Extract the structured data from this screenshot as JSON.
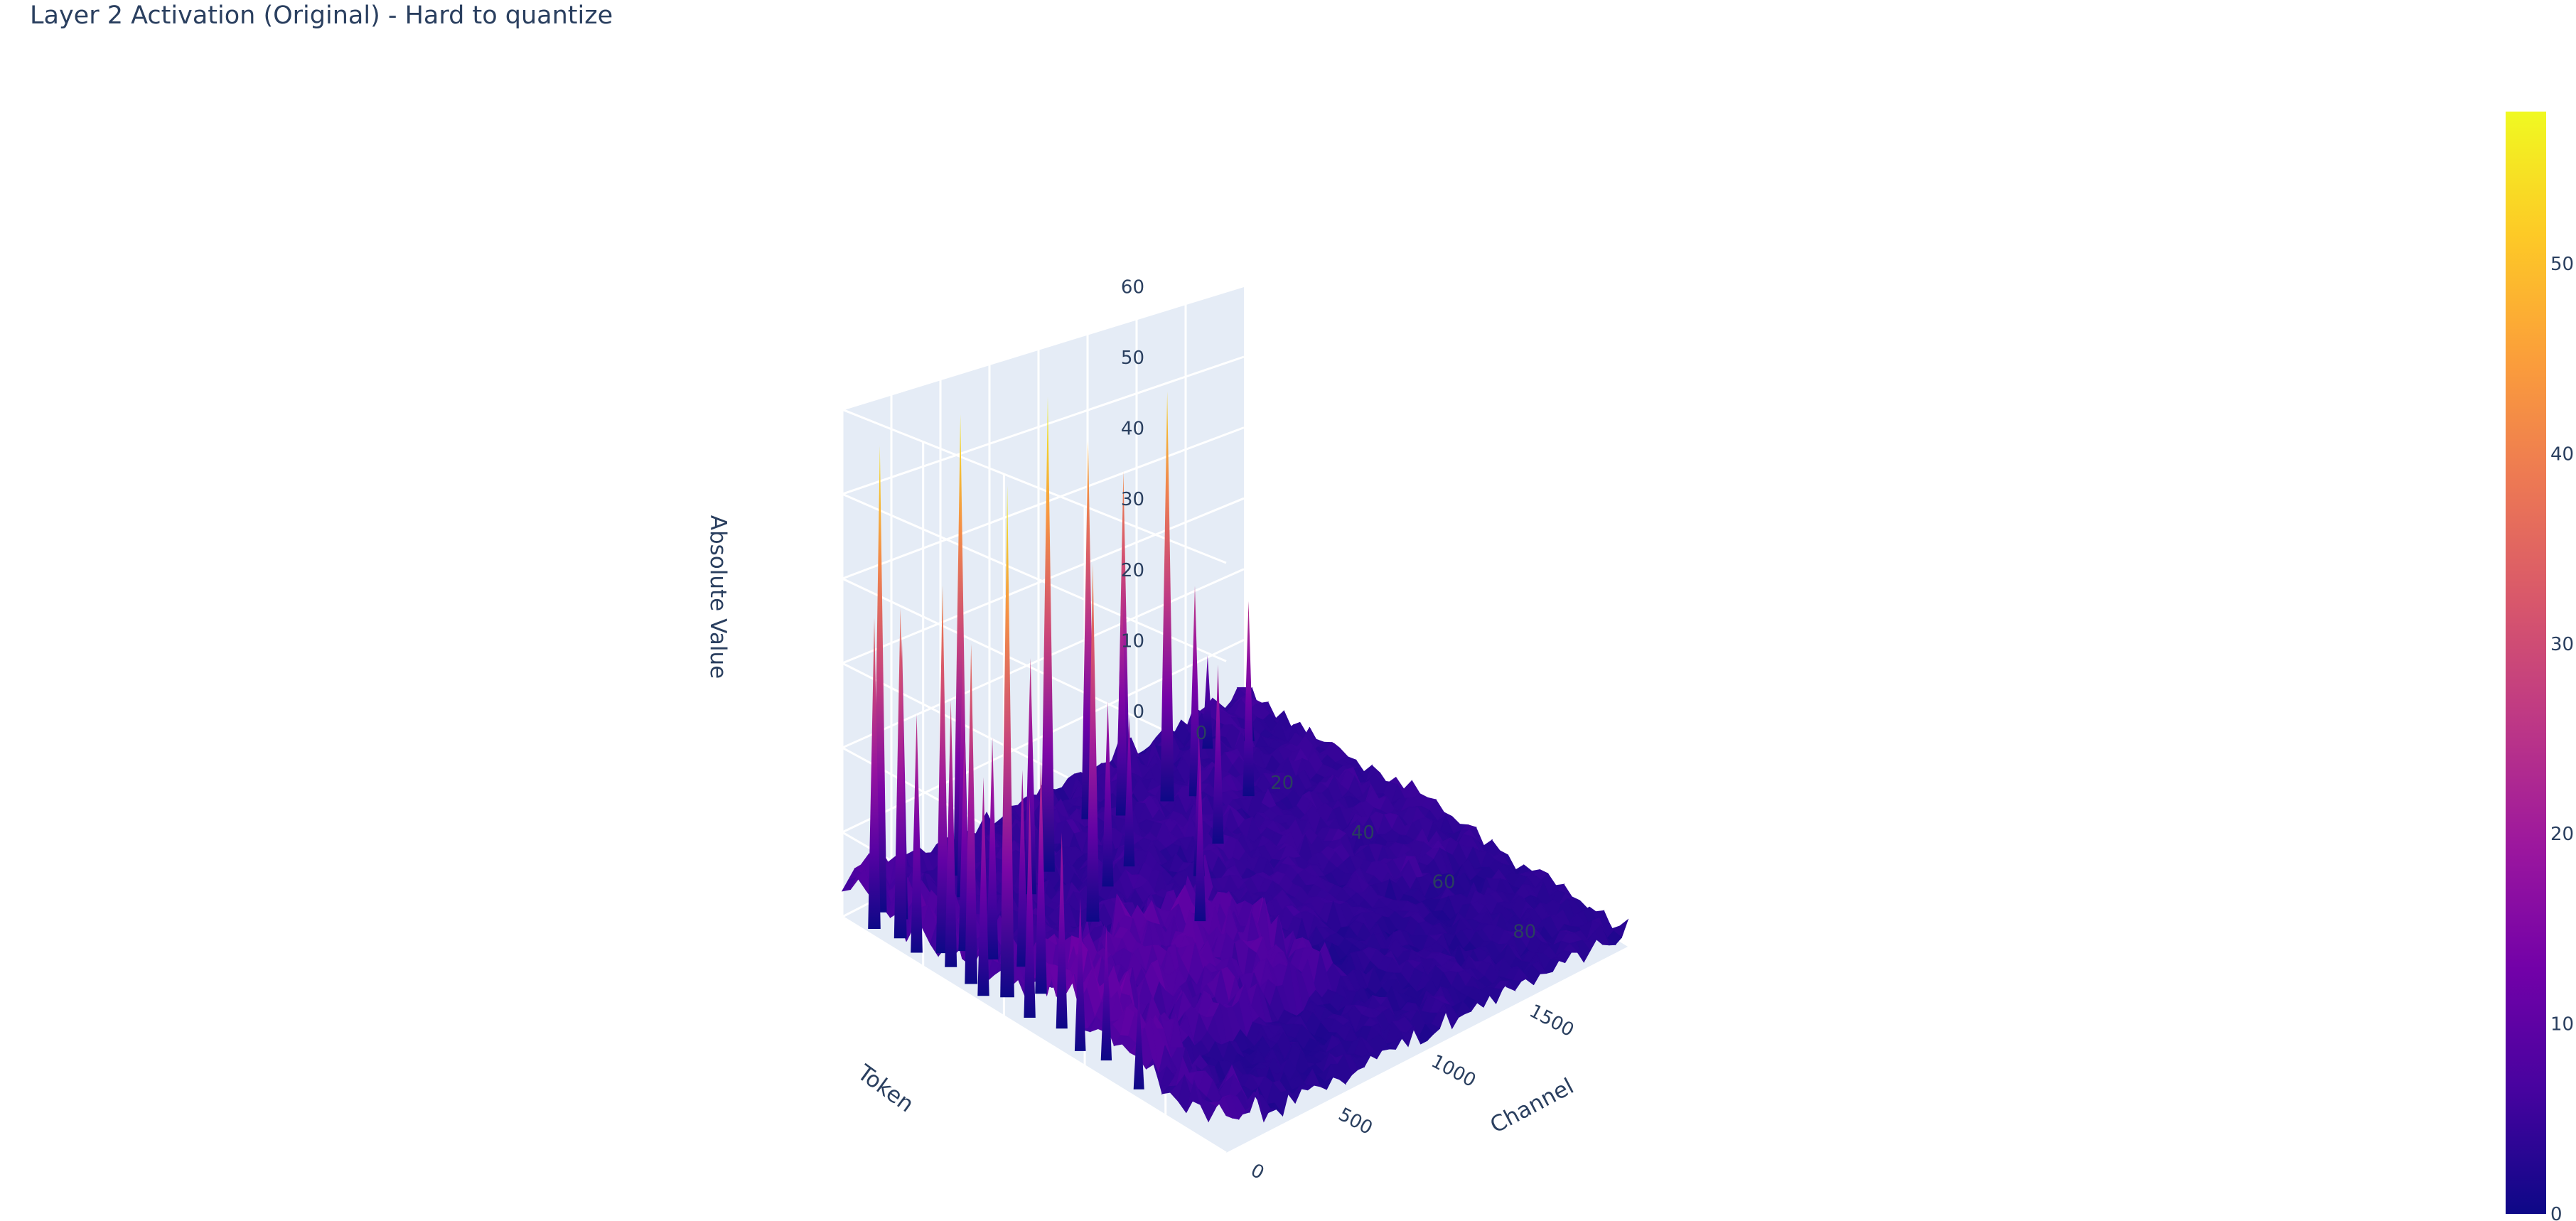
{
  "title": "Layer 2 Activation (Original) - Hard to quantize",
  "chart_data": {
    "type": "surface",
    "title": "Layer 2 Activation (Original) - Hard to quantize",
    "x_axis": {
      "label": "Channel",
      "ticks": [
        0,
        500,
        1000,
        1500
      ],
      "range": [
        0,
        2047
      ]
    },
    "y_axis": {
      "label": "Token",
      "ticks": [
        0,
        20,
        40,
        60,
        80
      ],
      "range": [
        0,
        95
      ]
    },
    "z_axis": {
      "label": "Absolute Value",
      "ticks": [
        0,
        10,
        20,
        30,
        40,
        50,
        60
      ],
      "range": [
        0,
        60
      ]
    },
    "colorscale": {
      "name": "Plasma",
      "range": [
        0,
        58
      ],
      "ticks": [
        0,
        10,
        20,
        30,
        40,
        50
      ]
    },
    "colors": {
      "plasma": [
        "#0d0887",
        "#46039f",
        "#7201a8",
        "#9c179e",
        "#bd3786",
        "#d8576b",
        "#ed7953",
        "#fb9f3a",
        "#fdca26",
        "#f0f921"
      ],
      "scene_bg": "#e5ecf6",
      "text": "#2a3f5f"
    },
    "baseline": {
      "typical_value": 2,
      "note": "noisy low-magnitude floor with two raised token-band ridges"
    },
    "peaks": [
      {
        "token": 2,
        "channel": 150,
        "value": 55
      },
      {
        "token": 5,
        "channel": 60,
        "value": 36
      },
      {
        "token": 6,
        "channel": 180,
        "value": 33
      },
      {
        "token": 10,
        "channel": 90,
        "value": 38
      },
      {
        "token": 15,
        "channel": 70,
        "value": 27
      },
      {
        "token": 18,
        "channel": 140,
        "value": 42
      },
      {
        "token": 20,
        "channel": 210,
        "value": 24
      },
      {
        "token": 22,
        "channel": 100,
        "value": 30
      },
      {
        "token": 25,
        "channel": 250,
        "value": 25
      },
      {
        "token": 28,
        "channel": 80,
        "value": 38
      },
      {
        "token": 30,
        "channel": 300,
        "value": 22
      },
      {
        "token": 32,
        "channel": 60,
        "value": 24
      },
      {
        "token": 35,
        "channel": 120,
        "value": 57
      },
      {
        "token": 38,
        "channel": 230,
        "value": 26
      },
      {
        "token": 42,
        "channel": 90,
        "value": 24
      },
      {
        "token": 48,
        "channel": 130,
        "value": 21
      },
      {
        "token": 55,
        "channel": 80,
        "value": 16
      },
      {
        "token": 60,
        "channel": 110,
        "value": 14
      },
      {
        "token": 70,
        "channel": 70,
        "value": 10
      },
      {
        "token": 3,
        "channel": 540,
        "value": 56
      },
      {
        "token": 8,
        "channel": 450,
        "value": 30
      },
      {
        "token": 12,
        "channel": 800,
        "value": 58
      },
      {
        "token": 15,
        "channel": 650,
        "value": 28
      },
      {
        "token": 20,
        "channel": 1050,
        "value": 18
      },
      {
        "token": 22,
        "channel": 900,
        "value": 22
      },
      {
        "token": 28,
        "channel": 700,
        "value": 42
      },
      {
        "token": 30,
        "channel": 1200,
        "value": 17
      },
      {
        "token": 40,
        "channel": 1000,
        "value": 19
      },
      {
        "token": 5,
        "channel": 1150,
        "value": 48
      },
      {
        "token": 4,
        "channel": 1350,
        "value": 42
      },
      {
        "token": 10,
        "channel": 1450,
        "value": 53
      },
      {
        "token": 8,
        "channel": 1260,
        "value": 30
      },
      {
        "token": 12,
        "channel": 1550,
        "value": 27
      },
      {
        "token": 25,
        "channel": 1400,
        "value": 22
      },
      {
        "token": 18,
        "channel": 1700,
        "value": 25
      },
      {
        "token": 3,
        "channel": 1800,
        "value": 12
      },
      {
        "token": 6,
        "channel": 1950,
        "value": 9
      }
    ]
  }
}
